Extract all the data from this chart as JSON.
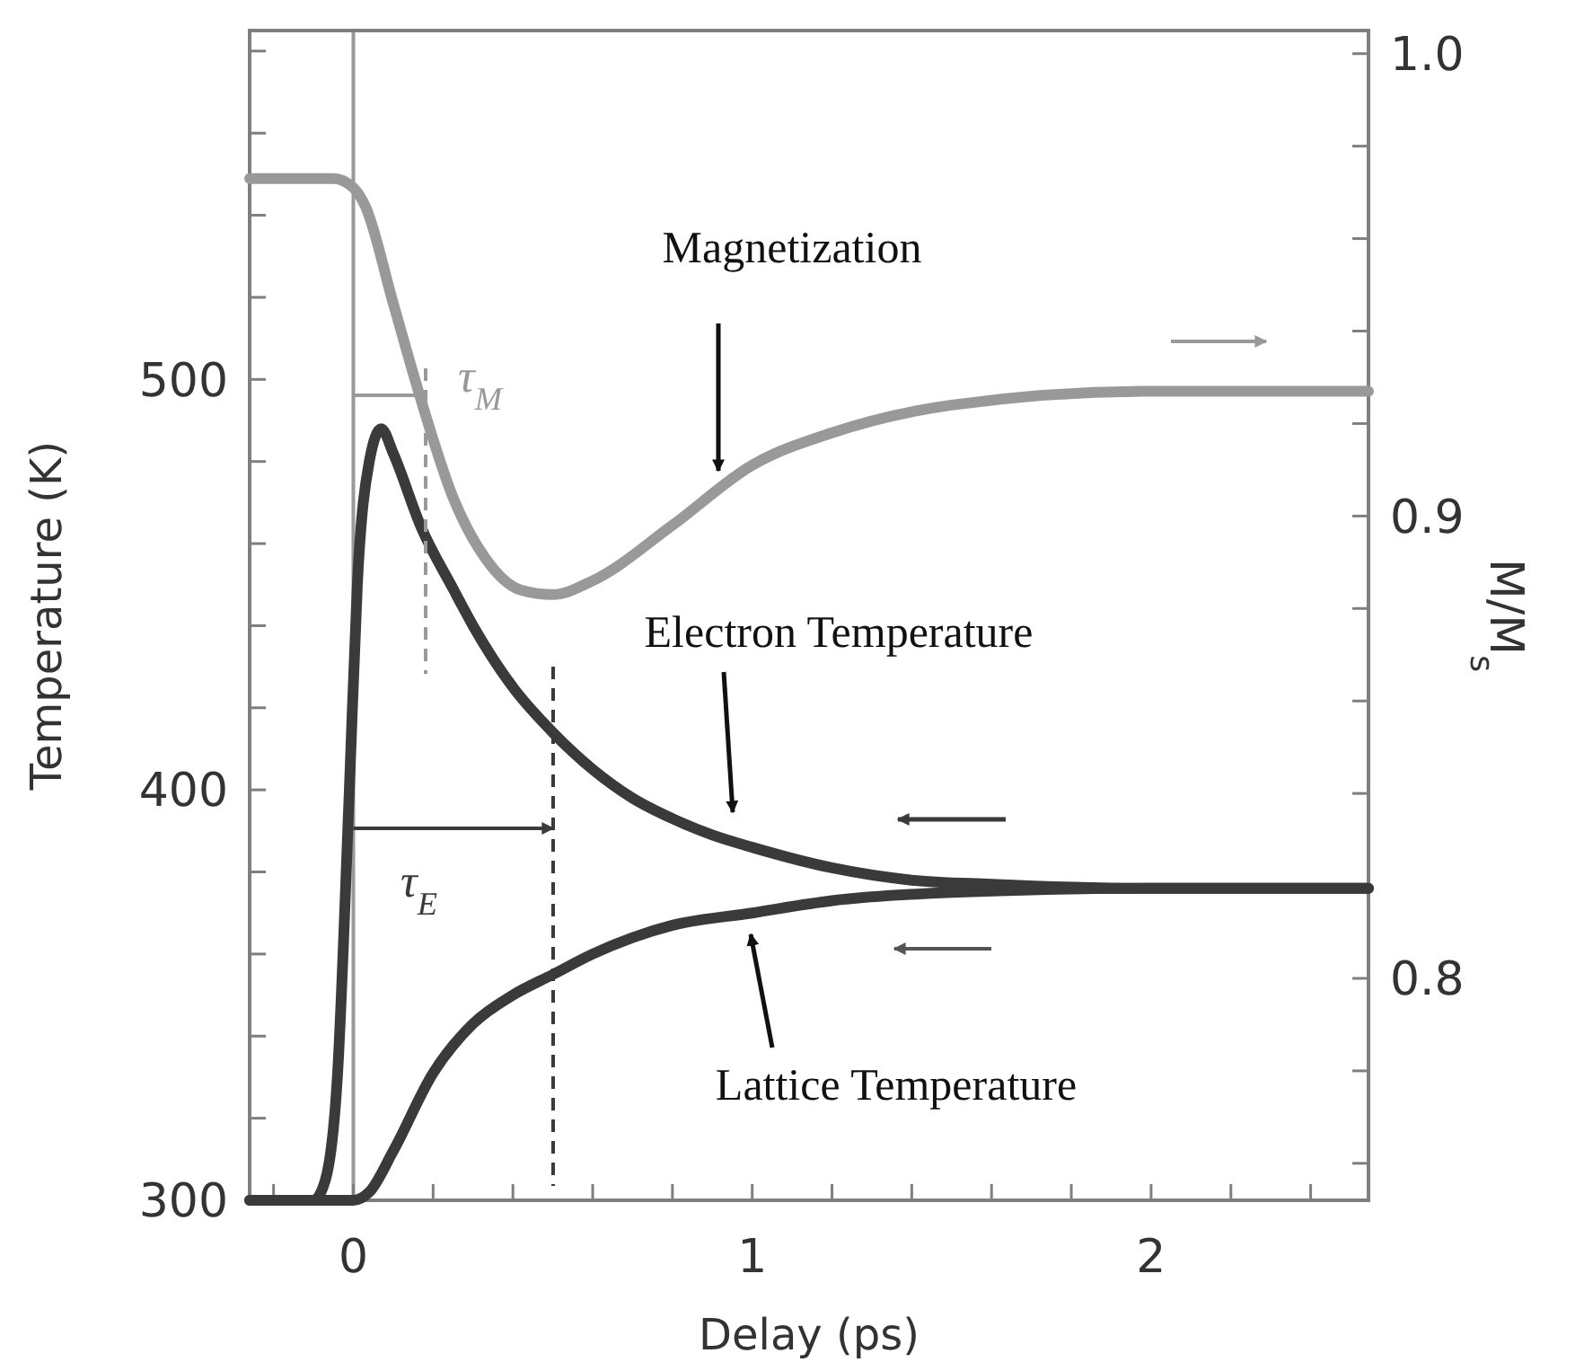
{
  "chart_data": {
    "type": "line",
    "xlabel": "Delay (ps)",
    "ylabel": "Temperature (K)",
    "y2label": "M/M$_{s}$",
    "xlim": [
      -0.26,
      2.545
    ],
    "ylim": [
      300,
      585
    ],
    "y2lim": [
      0.752,
      1.005
    ],
    "xticks": [
      {
        "value": -0.2,
        "label": null
      },
      0,
      {
        "value": 0.2,
        "label": null
      },
      {
        "value": 0.4,
        "label": null
      },
      {
        "value": 0.6,
        "label": null
      },
      {
        "value": 0.8,
        "label": null
      },
      1,
      {
        "value": 1.2,
        "label": null
      },
      {
        "value": 1.4,
        "label": null
      },
      {
        "value": 1.6,
        "label": null
      },
      {
        "value": 1.8,
        "label": null
      },
      2,
      {
        "value": 2.2,
        "label": null
      },
      {
        "value": 2.4,
        "label": null
      }
    ],
    "yticks": [
      300,
      {
        "value": 320,
        "label": null
      },
      {
        "value": 340,
        "label": null
      },
      {
        "value": 360,
        "label": null
      },
      {
        "value": 380,
        "label": null
      },
      400,
      {
        "value": 420,
        "label": null
      },
      {
        "value": 440,
        "label": null
      },
      {
        "value": 460,
        "label": null
      },
      {
        "value": 480,
        "label": null
      },
      500,
      {
        "value": 520,
        "label": null
      },
      {
        "value": 540,
        "label": null
      },
      {
        "value": 560,
        "label": null
      },
      {
        "value": 580,
        "label": null
      }
    ],
    "y2ticks": [
      {
        "value": 0.76,
        "label": null
      },
      {
        "value": 0.78,
        "label": null
      },
      {
        "value": 0.8,
        "label": "0.8"
      },
      {
        "value": 0.82,
        "label": null
      },
      {
        "value": 0.84,
        "label": null
      },
      {
        "value": 0.86,
        "label": null
      },
      {
        "value": 0.88,
        "label": null
      },
      {
        "value": 0.9,
        "label": "0.9"
      },
      {
        "value": 0.92,
        "label": null
      },
      {
        "value": 0.94,
        "label": null
      },
      {
        "value": 0.96,
        "label": null
      },
      {
        "value": 0.98,
        "label": null
      },
      {
        "value": 1,
        "label": "1.0"
      }
    ],
    "grid": false,
    "marker": "none",
    "line_style": "solid",
    "series": [
      {
        "color": "#999999",
        "axis": "y2",
        "x": [
          -0.26,
          -0.05,
          0,
          0.03,
          0.1,
          0.17,
          0.25,
          0.33,
          0.42,
          0.5,
          0.6,
          0.8,
          1.0,
          1.2,
          1.5,
          2.0,
          2.545
        ],
        "values": [
          0.973,
          0.973,
          0.971,
          0.967,
          0.946,
          0.925,
          0.904,
          0.891,
          0.884,
          0.883,
          0.886,
          0.898,
          0.911,
          0.918,
          0.924,
          0.927,
          0.927
        ]
      },
      {
        "color": "#3a3a3a",
        "x": [
          -0.26,
          -0.1,
          -0.07,
          -0.04,
          -0.01,
          0.01,
          0.04,
          0.07,
          0.1,
          0.17,
          0.25,
          0.3,
          0.4,
          0.5,
          0.6,
          0.7,
          0.8,
          0.9,
          1.0,
          1.2,
          1.4,
          1.6,
          2.0,
          2.545
        ],
        "values": [
          300,
          300,
          305,
          330,
          400,
          450,
          480,
          488,
          482,
          464,
          449,
          440,
          425,
          414,
          405,
          398,
          393,
          389,
          386,
          381,
          378,
          377,
          376,
          376
        ]
      },
      {
        "color": "#3a3a3a",
        "x": [
          -0.26,
          0,
          0.04,
          0.1,
          0.2,
          0.3,
          0.4,
          0.5,
          0.6,
          0.7,
          0.8,
          1.0,
          1.2,
          1.5,
          2.0,
          2.545
        ],
        "values": [
          300,
          300,
          302,
          312,
          331,
          343,
          350,
          355,
          360,
          364,
          367,
          370,
          373,
          375,
          376,
          376
        ]
      }
    ],
    "ref_lines": [
      {
        "axis": "x",
        "value": 0,
        "color": "#999999"
      }
    ],
    "annotations": [
      "τ$_{M}$",
      "τ$_{E}$",
      "Magnetization",
      "Electron Temperature",
      "Lattice Temperature"
    ]
  }
}
